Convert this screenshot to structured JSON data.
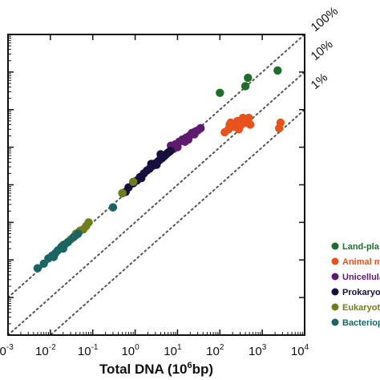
{
  "chart_data": {
    "type": "scatter",
    "title": "",
    "xlabel": {
      "main": "Total DNA (10",
      "sup": "6",
      "tail": "bp)"
    },
    "ylabel": "",
    "xscale": "log",
    "yscale": "log",
    "xlim": [
      0.001,
      10000
    ],
    "ylim": [
      0.0001,
      10000
    ],
    "grid": false,
    "legend_placement": "bottom-right",
    "x_ticks": [
      {
        "base": "10",
        "exp": "-3",
        "value": 0.001
      },
      {
        "base": "10",
        "exp": "-2",
        "value": 0.01
      },
      {
        "base": "10",
        "exp": "-1",
        "value": 0.1
      },
      {
        "base": "10",
        "exp": "0",
        "value": 1
      },
      {
        "base": "10",
        "exp": "1",
        "value": 10
      },
      {
        "base": "10",
        "exp": "2",
        "value": 100
      },
      {
        "base": "10",
        "exp": "3",
        "value": 1000
      },
      {
        "base": "10",
        "exp": "4",
        "value": 10000
      }
    ],
    "reference_lines": [
      {
        "label": "100%",
        "fraction": 1
      },
      {
        "label": "10%",
        "fraction": 0.1
      },
      {
        "label": "1%",
        "fraction": 0.01
      }
    ],
    "series": [
      {
        "name": "Land-pla",
        "color": "#1e6e2a",
        "points": [
          [
            400,
            420
          ],
          [
            460,
            700
          ],
          [
            2300,
            1100
          ],
          [
            100,
            280
          ]
        ]
      },
      {
        "name": "Animal m",
        "color": "#e8521c",
        "points": [
          [
            130,
            25
          ],
          [
            160,
            30
          ],
          [
            170,
            40
          ],
          [
            180,
            45
          ],
          [
            220,
            35
          ],
          [
            260,
            50
          ],
          [
            280,
            30
          ],
          [
            320,
            40
          ],
          [
            350,
            60
          ],
          [
            400,
            45
          ],
          [
            480,
            60
          ],
          [
            520,
            40
          ],
          [
            2500,
            32
          ],
          [
            2700,
            45
          ]
        ]
      },
      {
        "name": "Unicellula",
        "color": "#5e1a6e",
        "points": [
          [
            7,
            11
          ],
          [
            9,
            12
          ],
          [
            11,
            14
          ],
          [
            13,
            16
          ],
          [
            16,
            18
          ],
          [
            19,
            20
          ],
          [
            22,
            24
          ],
          [
            26,
            26
          ],
          [
            30,
            28
          ],
          [
            35,
            32
          ],
          [
            15,
            14
          ],
          [
            25,
            22
          ],
          [
            18,
            16
          ],
          [
            10,
            10
          ],
          [
            8,
            9
          ]
        ]
      },
      {
        "name": "Prokaryo",
        "color": "#15103e",
        "points": [
          [
            0.5,
            0.6
          ],
          [
            0.7,
            0.85
          ],
          [
            0.9,
            1.1
          ],
          [
            1.1,
            1.3
          ],
          [
            1.3,
            1.6
          ],
          [
            1.6,
            2
          ],
          [
            1.9,
            2.4
          ],
          [
            2.2,
            2.7
          ],
          [
            2.6,
            3.2
          ],
          [
            3,
            3.7
          ],
          [
            3.4,
            4.1
          ],
          [
            3.8,
            4.6
          ],
          [
            4.3,
            5.1
          ],
          [
            4.8,
            5.7
          ],
          [
            5.3,
            6.3
          ],
          [
            5.8,
            7
          ],
          [
            6.3,
            7.5
          ],
          [
            6.8,
            8
          ],
          [
            2.4,
            3.6
          ],
          [
            3.2,
            3.4
          ],
          [
            4,
            6.5
          ],
          [
            1.4,
            1.5
          ],
          [
            0.6,
            0.65
          ]
        ]
      },
      {
        "name": "Eukaryot",
        "color": "#707d1c",
        "points": [
          [
            0.02,
            0.025
          ],
          [
            0.03,
            0.035
          ],
          [
            0.04,
            0.045
          ],
          [
            0.05,
            0.06
          ],
          [
            0.07,
            0.08
          ],
          [
            0.08,
            0.1
          ],
          [
            0.5,
            0.6
          ],
          [
            0.9,
            1.2
          ],
          [
            0.04,
            0.05
          ],
          [
            0.06,
            0.065
          ]
        ]
      },
      {
        "name": "Bacteriop",
        "color": "#1a6464",
        "points": [
          [
            0.005,
            0.006
          ],
          [
            0.007,
            0.008
          ],
          [
            0.009,
            0.011
          ],
          [
            0.011,
            0.013
          ],
          [
            0.013,
            0.015
          ],
          [
            0.015,
            0.018
          ],
          [
            0.018,
            0.022
          ],
          [
            0.022,
            0.026
          ],
          [
            0.026,
            0.03
          ],
          [
            0.035,
            0.04
          ],
          [
            0.045,
            0.05
          ],
          [
            0.3,
            0.25
          ],
          [
            0.012,
            0.012
          ],
          [
            0.02,
            0.02
          ]
        ]
      }
    ]
  }
}
